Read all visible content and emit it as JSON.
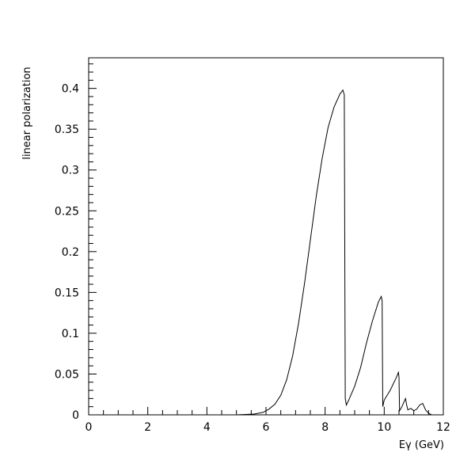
{
  "chart_data": {
    "type": "line",
    "title": "",
    "xlabel": "Eγ (GeV)",
    "ylabel": "linear polarization",
    "xlim": [
      0,
      12
    ],
    "ylim": [
      0,
      0.4375
    ],
    "grid": false,
    "x_ticks": [
      0,
      2,
      4,
      6,
      8,
      10,
      12
    ],
    "x_tick_labels": [
      "0",
      "2",
      "4",
      "6",
      "8",
      "10",
      "12"
    ],
    "y_ticks": [
      0,
      0.05,
      0.1,
      0.15,
      0.2,
      0.25,
      0.3,
      0.35,
      0.4
    ],
    "y_tick_labels": [
      "0",
      "0.05",
      "0.1",
      "0.15",
      "0.2",
      "0.25",
      "0.3",
      "0.35",
      "0.4"
    ],
    "series": [
      {
        "x": [
          5.0,
          5.6,
          5.9,
          6.1,
          6.3,
          6.5,
          6.7,
          6.9,
          7.1,
          7.3,
          7.5,
          7.7,
          7.9,
          8.1,
          8.3,
          8.5,
          8.6,
          8.65,
          8.68,
          8.72,
          8.8,
          9.0,
          9.2,
          9.4,
          9.6,
          9.8,
          9.9,
          9.93,
          9.95,
          10.0,
          10.2,
          10.4,
          10.48,
          10.5,
          10.52,
          10.6,
          10.72,
          10.76,
          10.8,
          10.9,
          11.0,
          11.1,
          11.2,
          11.3,
          11.4,
          11.5,
          11.6
        ],
        "y": [
          0.0,
          0.001,
          0.003,
          0.007,
          0.013,
          0.024,
          0.043,
          0.072,
          0.112,
          0.16,
          0.214,
          0.268,
          0.314,
          0.352,
          0.377,
          0.393,
          0.398,
          0.392,
          0.02,
          0.012,
          0.018,
          0.035,
          0.058,
          0.088,
          0.115,
          0.138,
          0.145,
          0.14,
          0.01,
          0.018,
          0.03,
          0.045,
          0.052,
          0.046,
          0.005,
          0.01,
          0.02,
          0.012,
          0.006,
          0.008,
          0.005,
          0.007,
          0.012,
          0.014,
          0.006,
          0.002,
          0.0
        ]
      }
    ]
  }
}
